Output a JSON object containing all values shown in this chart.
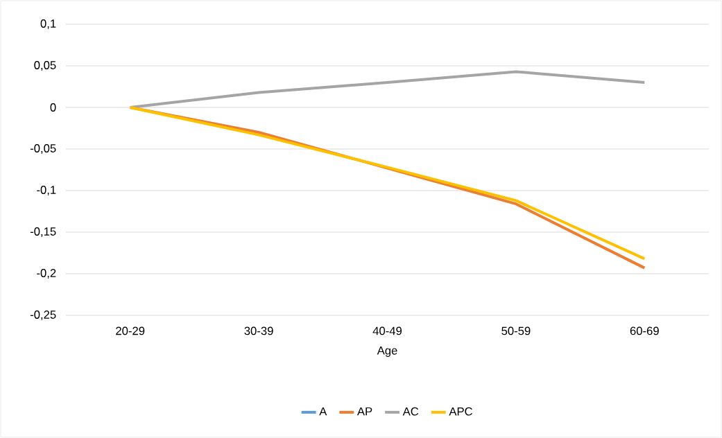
{
  "chart_data": {
    "type": "line",
    "xlabel": "Age",
    "categories": [
      "20-29",
      "30-39",
      "40-49",
      "50-59",
      "60-69"
    ],
    "series": [
      {
        "name": "A",
        "color": "#5b9bd5",
        "values": [
          null,
          null,
          null,
          null,
          null
        ]
      },
      {
        "name": "AP",
        "color": "#ed7d31",
        "values": [
          0,
          -0.03,
          -0.073,
          -0.116,
          -0.193
        ]
      },
      {
        "name": "AC",
        "color": "#a5a5a5",
        "values": [
          0,
          0.018,
          0.03,
          0.043,
          0.03
        ]
      },
      {
        "name": "APC",
        "color": "#ffc000",
        "values": [
          0,
          -0.033,
          -0.072,
          -0.112,
          -0.182
        ]
      }
    ],
    "ylim": [
      -0.25,
      0.1
    ],
    "yticks": [
      {
        "value": -0.25,
        "label": "-0,25"
      },
      {
        "value": -0.2,
        "label": "-0,2"
      },
      {
        "value": -0.15,
        "label": "-0,15"
      },
      {
        "value": -0.1,
        "label": "-0,1"
      },
      {
        "value": -0.05,
        "label": "-0,05"
      },
      {
        "value": 0,
        "label": "0"
      },
      {
        "value": 0.05,
        "label": "0,05"
      },
      {
        "value": 0.1,
        "label": "0,1"
      }
    ],
    "grid": "y",
    "legend": "bottom",
    "marker": "none",
    "line_style": "solid"
  }
}
